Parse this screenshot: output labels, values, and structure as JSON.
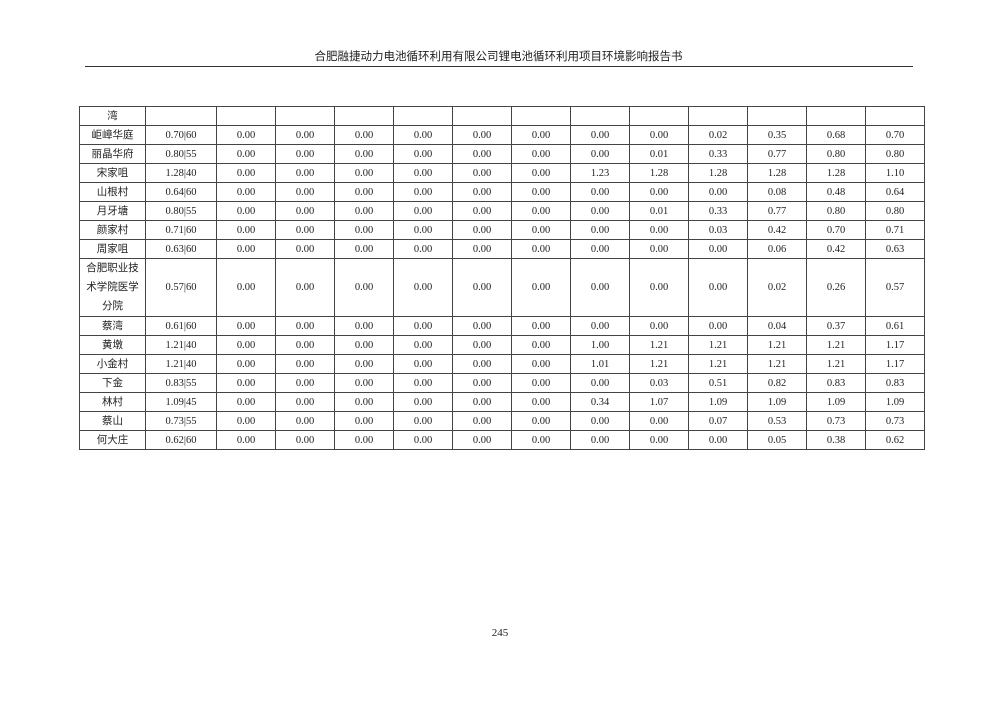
{
  "header": {
    "title": "合肥融捷动力电池循环利用有限公司锂电池循环利用项目环境影响报告书"
  },
  "table": {
    "rows": [
      {
        "name": "湾",
        "values": [
          "",
          "",
          "",
          "",
          "",
          "",
          "",
          "",
          "",
          "",
          "",
          "",
          ""
        ]
      },
      {
        "name": "岠嶂华庭",
        "values": [
          "0.70|60",
          "0.00",
          "0.00",
          "0.00",
          "0.00",
          "0.00",
          "0.00",
          "0.00",
          "0.00",
          "0.02",
          "0.35",
          "0.68",
          "0.70"
        ]
      },
      {
        "name": "丽晶华府",
        "values": [
          "0.80|55",
          "0.00",
          "0.00",
          "0.00",
          "0.00",
          "0.00",
          "0.00",
          "0.00",
          "0.01",
          "0.33",
          "0.77",
          "0.80",
          "0.80"
        ]
      },
      {
        "name": "宋家咀",
        "values": [
          "1.28|40",
          "0.00",
          "0.00",
          "0.00",
          "0.00",
          "0.00",
          "0.00",
          "1.23",
          "1.28",
          "1.28",
          "1.28",
          "1.28",
          "1.10"
        ]
      },
      {
        "name": "山根村",
        "values": [
          "0.64|60",
          "0.00",
          "0.00",
          "0.00",
          "0.00",
          "0.00",
          "0.00",
          "0.00",
          "0.00",
          "0.00",
          "0.08",
          "0.48",
          "0.64"
        ]
      },
      {
        "name": "月牙塘",
        "values": [
          "0.80|55",
          "0.00",
          "0.00",
          "0.00",
          "0.00",
          "0.00",
          "0.00",
          "0.00",
          "0.01",
          "0.33",
          "0.77",
          "0.80",
          "0.80"
        ]
      },
      {
        "name": "颜家村",
        "values": [
          "0.71|60",
          "0.00",
          "0.00",
          "0.00",
          "0.00",
          "0.00",
          "0.00",
          "0.00",
          "0.00",
          "0.03",
          "0.42",
          "0.70",
          "0.71"
        ]
      },
      {
        "name": "周家咀",
        "values": [
          "0.63|60",
          "0.00",
          "0.00",
          "0.00",
          "0.00",
          "0.00",
          "0.00",
          "0.00",
          "0.00",
          "0.00",
          "0.06",
          "0.42",
          "0.63"
        ]
      },
      {
        "name": "合肥职业技术学院医学分院",
        "tall": true,
        "values": [
          "0.57|60",
          "0.00",
          "0.00",
          "0.00",
          "0.00",
          "0.00",
          "0.00",
          "0.00",
          "0.00",
          "0.00",
          "0.02",
          "0.26",
          "0.57"
        ]
      },
      {
        "name": "蔡湾",
        "values": [
          "0.61|60",
          "0.00",
          "0.00",
          "0.00",
          "0.00",
          "0.00",
          "0.00",
          "0.00",
          "0.00",
          "0.00",
          "0.04",
          "0.37",
          "0.61"
        ]
      },
      {
        "name": "黄墩",
        "values": [
          "1.21|40",
          "0.00",
          "0.00",
          "0.00",
          "0.00",
          "0.00",
          "0.00",
          "1.00",
          "1.21",
          "1.21",
          "1.21",
          "1.21",
          "1.17"
        ]
      },
      {
        "name": "小金村",
        "values": [
          "1.21|40",
          "0.00",
          "0.00",
          "0.00",
          "0.00",
          "0.00",
          "0.00",
          "1.01",
          "1.21",
          "1.21",
          "1.21",
          "1.21",
          "1.17"
        ]
      },
      {
        "name": "下金",
        "values": [
          "0.83|55",
          "0.00",
          "0.00",
          "0.00",
          "0.00",
          "0.00",
          "0.00",
          "0.00",
          "0.03",
          "0.51",
          "0.82",
          "0.83",
          "0.83"
        ]
      },
      {
        "name": "林村",
        "values": [
          "1.09|45",
          "0.00",
          "0.00",
          "0.00",
          "0.00",
          "0.00",
          "0.00",
          "0.34",
          "1.07",
          "1.09",
          "1.09",
          "1.09",
          "1.09"
        ]
      },
      {
        "name": "蔡山",
        "values": [
          "0.73|55",
          "0.00",
          "0.00",
          "0.00",
          "0.00",
          "0.00",
          "0.00",
          "0.00",
          "0.00",
          "0.07",
          "0.53",
          "0.73",
          "0.73"
        ]
      },
      {
        "name": "何大庄",
        "values": [
          "0.62|60",
          "0.00",
          "0.00",
          "0.00",
          "0.00",
          "0.00",
          "0.00",
          "0.00",
          "0.00",
          "0.00",
          "0.05",
          "0.38",
          "0.62"
        ]
      }
    ]
  },
  "footer": {
    "page_number": "245"
  }
}
